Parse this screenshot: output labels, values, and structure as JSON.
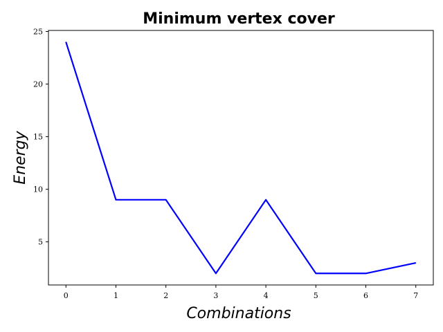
{
  "chart_data": {
    "type": "line",
    "title": "Minimum vertex cover",
    "xlabel": "Combinations",
    "ylabel": "Energy",
    "x": [
      0,
      1,
      2,
      3,
      4,
      5,
      6,
      7
    ],
    "series": [
      {
        "values": [
          24,
          9,
          9,
          2,
          9,
          2,
          2,
          3
        ],
        "color": "#0000ff"
      }
    ],
    "xlim": [
      -0.35,
      7.35
    ],
    "ylim": [
      0.9,
      25.1
    ],
    "xticks": [
      0,
      1,
      2,
      3,
      4,
      5,
      6,
      7
    ],
    "yticks": [
      5,
      10,
      15,
      20,
      25
    ],
    "grid": false,
    "legend": "none"
  }
}
